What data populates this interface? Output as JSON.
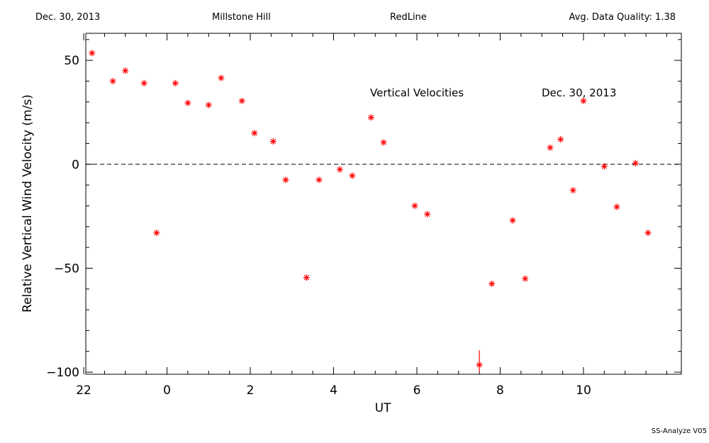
{
  "header": {
    "date": "Dec. 30, 2013",
    "site": "Millstone Hill",
    "filter": "RedLine",
    "quality": "Avg. Data Quality: 1.38"
  },
  "footer": "SS-Analyze V05",
  "chart_data": {
    "type": "scatter",
    "title": "Vertical Velocities",
    "annotation": "Dec. 30, 2013",
    "xlabel": "UT",
    "ylabel": "Relative Vertical Wind Velocity (m/s)",
    "xlim": [
      -1.95,
      12.35
    ],
    "ylim": [
      -101,
      63
    ],
    "x_tick_labels": [
      "22",
      "0",
      "2",
      "4",
      "6",
      "8",
      "10"
    ],
    "y_tick_labels": [
      "50",
      "0",
      "−50",
      "−100"
    ],
    "zero_line": "dashed",
    "marker_color": "#ff0000",
    "marker": "asterisk",
    "points": [
      {
        "x": -1.8,
        "y": 53.5
      },
      {
        "x": -1.3,
        "y": 40.0
      },
      {
        "x": -1.0,
        "y": 45.0
      },
      {
        "x": -0.55,
        "y": 39.0
      },
      {
        "x": -0.25,
        "y": -33.0
      },
      {
        "x": 0.2,
        "y": 39.0
      },
      {
        "x": 0.5,
        "y": 29.5
      },
      {
        "x": 1.0,
        "y": 28.5
      },
      {
        "x": 1.3,
        "y": 41.5
      },
      {
        "x": 1.8,
        "y": 30.5
      },
      {
        "x": 2.1,
        "y": 15.0
      },
      {
        "x": 2.55,
        "y": 11.0
      },
      {
        "x": 2.85,
        "y": -7.5
      },
      {
        "x": 3.35,
        "y": -54.5
      },
      {
        "x": 3.65,
        "y": -7.5
      },
      {
        "x": 4.15,
        "y": -2.5
      },
      {
        "x": 4.45,
        "y": -5.5
      },
      {
        "x": 4.9,
        "y": 22.5
      },
      {
        "x": 5.2,
        "y": 10.5
      },
      {
        "x": 5.95,
        "y": -20.0
      },
      {
        "x": 6.25,
        "y": -24.0
      },
      {
        "x": 7.5,
        "y": -96.5,
        "error": 3.5
      },
      {
        "x": 7.8,
        "y": -57.5
      },
      {
        "x": 8.3,
        "y": -27.0
      },
      {
        "x": 8.6,
        "y": -55.0
      },
      {
        "x": 9.2,
        "y": 8.0
      },
      {
        "x": 9.45,
        "y": 12.0
      },
      {
        "x": 9.75,
        "y": -12.5
      },
      {
        "x": 10.0,
        "y": 30.5
      },
      {
        "x": 10.5,
        "y": -1.0
      },
      {
        "x": 10.8,
        "y": -20.5
      },
      {
        "x": 11.25,
        "y": 0.5
      },
      {
        "x": 11.55,
        "y": -33.0
      }
    ]
  }
}
